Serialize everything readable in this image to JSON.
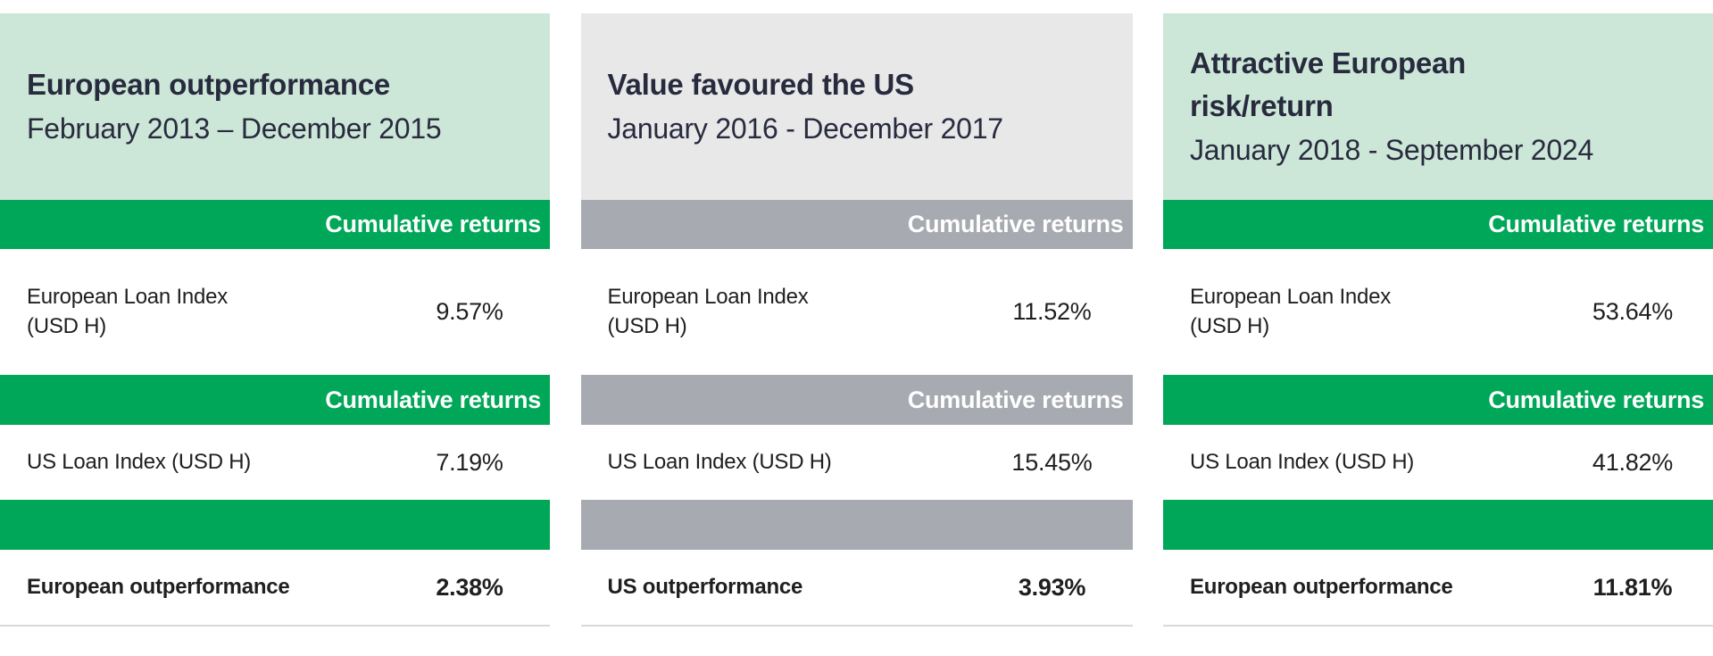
{
  "colors": {
    "green": "#00A758",
    "light_green": "#CCE6D7",
    "gray": "#A8AAB1",
    "light_gray": "#E8E8E9",
    "heading_text": "#282B3E",
    "body_text": "#1F1F1F",
    "divider": "#D9D9DB"
  },
  "sections": [
    {
      "theme": "green",
      "title": "European outperformance",
      "period": "February 2013 – December 2015",
      "column_header": "Cumulative returns",
      "rows": [
        {
          "label": "European Loan Index\n(USD H)",
          "value": "9.57%"
        },
        {
          "label": "US Loan Index (USD H)",
          "value": "7.19%"
        }
      ],
      "summary": {
        "label": "European outperformance",
        "value": "2.38%"
      }
    },
    {
      "theme": "gray",
      "title": "Value favoured the US",
      "period": "January 2016 - December 2017",
      "column_header": "Cumulative returns",
      "rows": [
        {
          "label": "European Loan Index\n(USD H)",
          "value": "11.52%"
        },
        {
          "label": "US Loan Index (USD H)",
          "value": "15.45%"
        }
      ],
      "summary": {
        "label": "US outperformance",
        "value": "3.93%"
      }
    },
    {
      "theme": "green",
      "title": "Attractive European\nrisk/return",
      "period": "January 2018 - September 2024",
      "column_header": "Cumulative returns",
      "rows": [
        {
          "label": "European Loan Index\n(USD H)",
          "value": "53.64%"
        },
        {
          "label": "US Loan Index (USD H)",
          "value": "41.82%"
        }
      ],
      "summary": {
        "label": "European outperformance",
        "value": "11.81%"
      }
    }
  ]
}
